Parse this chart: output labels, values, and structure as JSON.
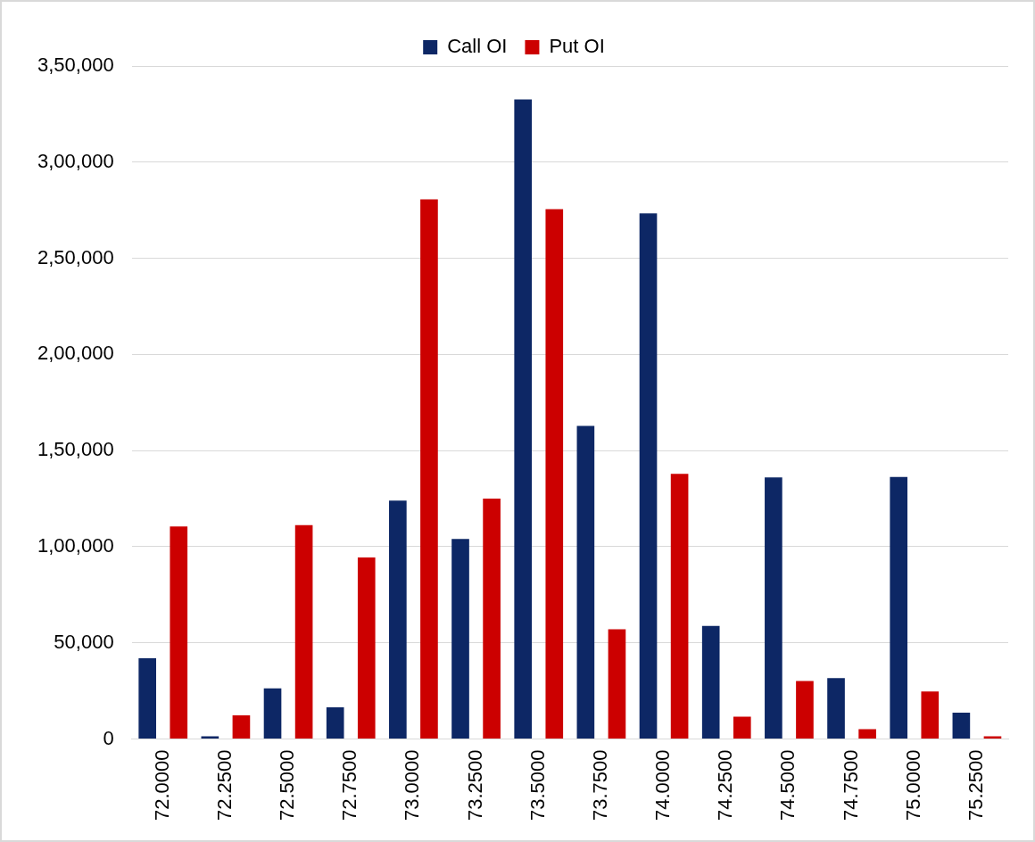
{
  "chart_data": {
    "type": "bar",
    "categories": [
      "72.0000",
      "72.2500",
      "72.5000",
      "72.7500",
      "73.0000",
      "73.2500",
      "73.5000",
      "73.7500",
      "74.0000",
      "74.2500",
      "74.5000",
      "74.7500",
      "75.0000",
      "75.2500"
    ],
    "series": [
      {
        "name": "Call OI",
        "color": "#0d2765",
        "values": [
          42000,
          1400,
          26300,
          16500,
          124000,
          104000,
          332600,
          162800,
          273300,
          58800,
          136000,
          31600,
          136300,
          13700
        ]
      },
      {
        "name": "Put OI",
        "color": "#cc0000",
        "values": [
          110500,
          12300,
          111200,
          94400,
          280700,
          125000,
          275600,
          57000,
          137900,
          11600,
          30200,
          5100,
          24700,
          1400
        ]
      }
    ],
    "ylim": [
      0,
      350000
    ],
    "yticks": [
      {
        "value": 0,
        "label": "0"
      },
      {
        "value": 50000,
        "label": "50,000"
      },
      {
        "value": 100000,
        "label": "1,00,000"
      },
      {
        "value": 150000,
        "label": "1,50,000"
      },
      {
        "value": 200000,
        "label": "2,00,000"
      },
      {
        "value": 250000,
        "label": "2,50,000"
      },
      {
        "value": 300000,
        "label": "3,00,000"
      },
      {
        "value": 350000,
        "label": "3,50,000"
      }
    ],
    "grid": "y",
    "legend": "top"
  }
}
